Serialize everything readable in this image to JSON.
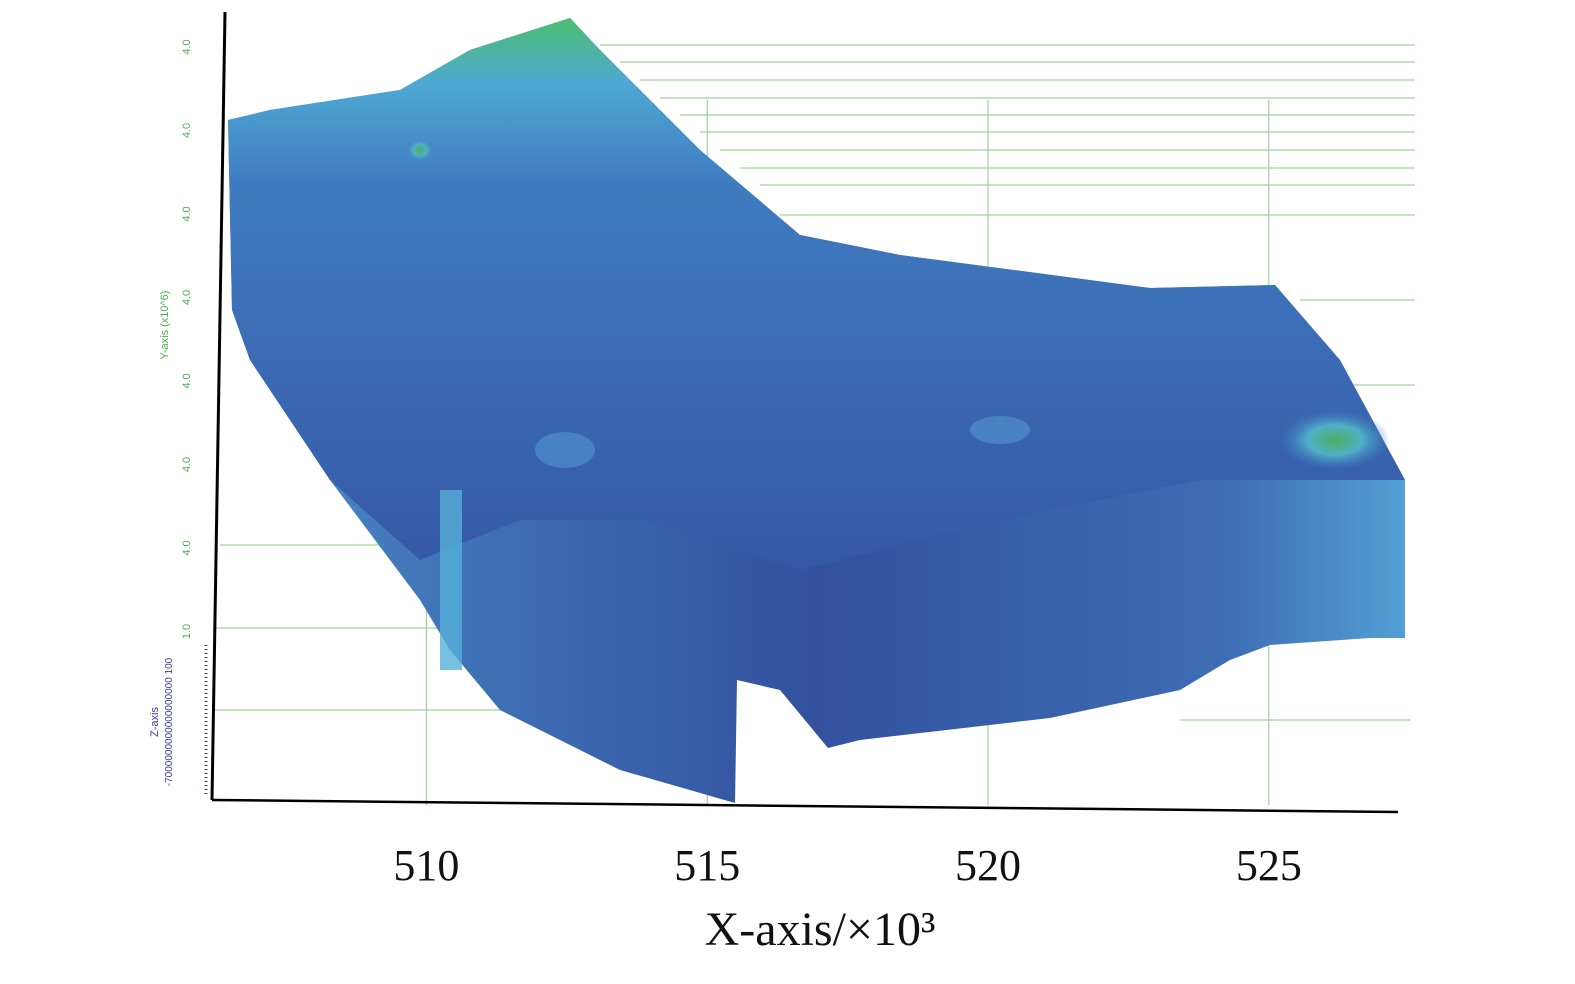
{
  "chart_data": {
    "type": "surface",
    "xlabel": "X-axis/×10³",
    "xlim": [
      506.2,
      527.3
    ],
    "xticks": [
      510,
      515,
      520,
      525
    ],
    "ylabel": "Y-axis (x10^6)",
    "y_tick_labels": [
      "4.0",
      "4.0",
      "4.0",
      "4.0",
      "4.0",
      "4.0",
      "4.0",
      "1.0"
    ],
    "zlabel": "Z-axis",
    "z_tick_label": "-7000000000000000000 100",
    "grid": true,
    "grid_color": "#9fd39a"
  }
}
